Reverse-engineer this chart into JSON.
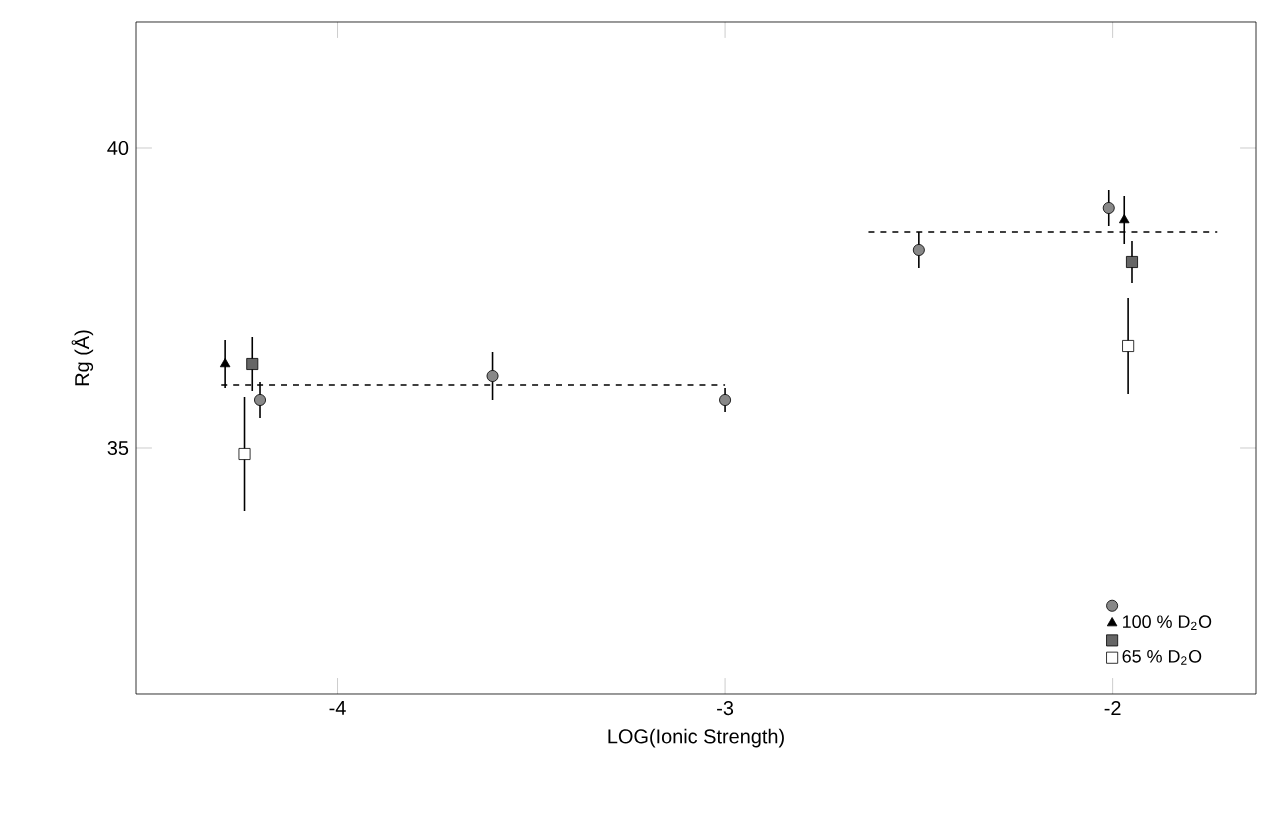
{
  "chart_data": {
    "type": "scatter",
    "xlabel": "LOG(Ionic Strength)",
    "ylabel": "Rg (Å)",
    "xlim": [
      -4.52,
      -1.63
    ],
    "ylim": [
      30.9,
      42.1
    ],
    "xticks": [
      -4,
      -3,
      -2
    ],
    "yticks": [
      35,
      40
    ],
    "grid": false,
    "legend": "bottom right",
    "series": [
      {
        "marker": "circle",
        "color": "#888888",
        "x": [
          -4.2,
          -3.6,
          -3.0,
          -2.5,
          -2.01
        ],
        "values": [
          35.8,
          36.2,
          35.8,
          38.3,
          39.0
        ],
        "errors": [
          0.3,
          0.4,
          0.2,
          0.3,
          0.3
        ]
      },
      {
        "name": "100 % D$_{2}$O",
        "marker": "triangle",
        "color": "#000000",
        "x": [
          -4.29,
          -1.97
        ],
        "values": [
          36.4,
          38.8
        ],
        "errors": [
          0.4,
          0.4
        ]
      },
      {
        "marker": "square",
        "color": "#666666",
        "x": [
          -4.22,
          -1.95
        ],
        "values": [
          36.4,
          38.1
        ],
        "errors": [
          0.45,
          0.35
        ]
      },
      {
        "name": "65 % D$_{2}$O",
        "marker": "square",
        "color": "#ffffff",
        "x": [
          -4.24,
          -1.96
        ],
        "values": [
          34.9,
          36.7
        ],
        "errors": [
          0.95,
          0.8
        ]
      },
      {
        "type": "line",
        "line_style": "dashed",
        "marker": "none",
        "color": "#000000",
        "x": [
          -4.3,
          -3.0
        ],
        "values": [
          36.05,
          36.05
        ]
      },
      {
        "type": "line",
        "line_style": "dashed",
        "marker": "none",
        "color": "#000000",
        "x": [
          -2.63,
          -1.73
        ],
        "values": [
          38.6,
          38.6
        ]
      }
    ]
  }
}
